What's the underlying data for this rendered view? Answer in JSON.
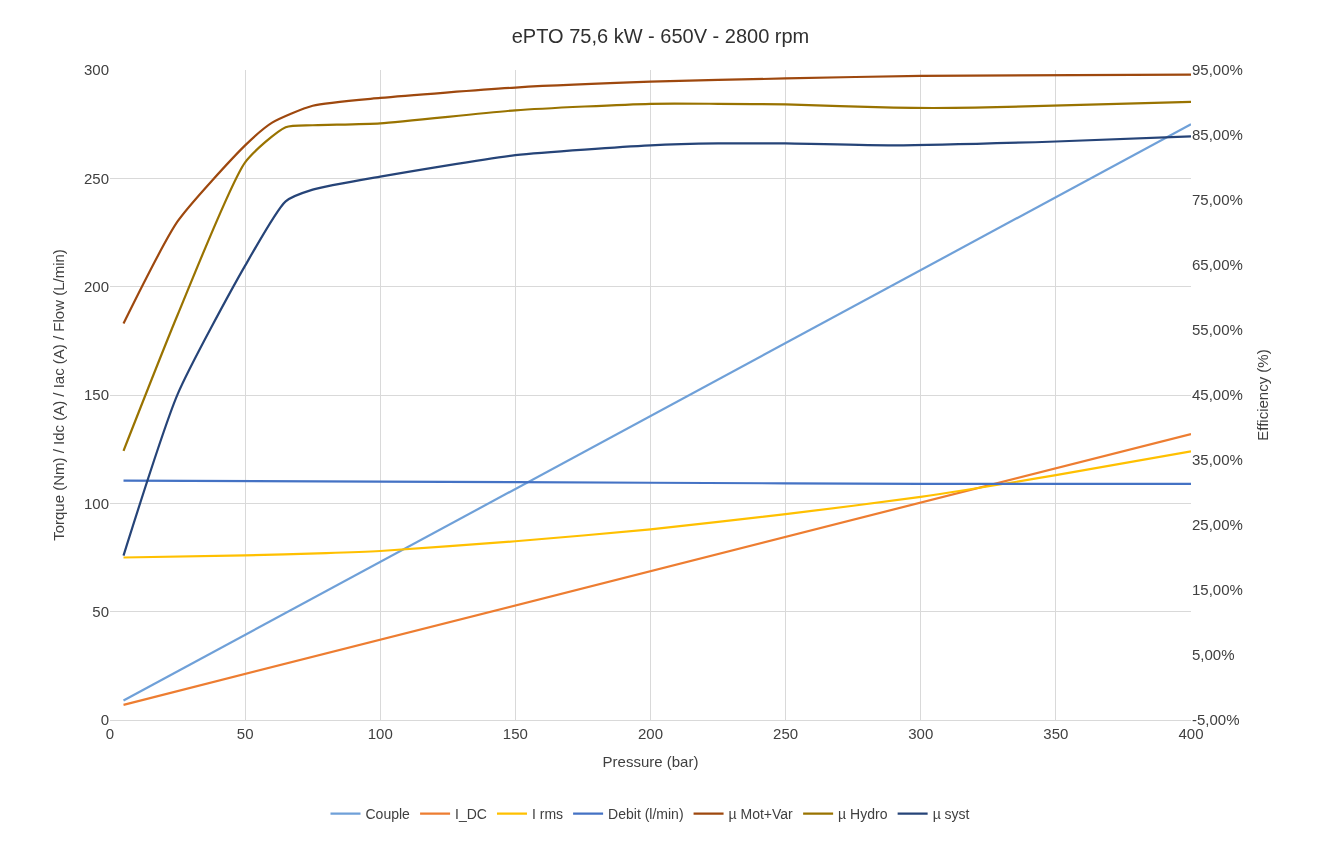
{
  "chart_data": {
    "type": "line",
    "title": "ePTO 75,6 kW - 650V - 2800 rpm",
    "xlabel": "Pressure (bar)",
    "ylabel": "Torque (Nm) / Idc (A) / Iac (A) / Flow (L/min)",
    "y2label": "Efficiency (%)",
    "xlim": [
      0,
      400
    ],
    "xticks": [
      0,
      50,
      100,
      150,
      200,
      250,
      300,
      350,
      {
        "value": 400,
        "label": "400"
      }
    ],
    "ylim": [
      0,
      300
    ],
    "yticks": [
      0,
      50,
      100,
      150,
      200,
      250,
      300
    ],
    "y2lim": [
      -5,
      95
    ],
    "y2ticks": [
      {
        "value": -5,
        "label": "-5,00%"
      },
      {
        "value": 5,
        "label": "5,00%"
      },
      {
        "value": 15,
        "label": "15,00%"
      },
      {
        "value": 25,
        "label": "25,00%"
      },
      {
        "value": 35,
        "label": "35,00%"
      },
      {
        "value": 45,
        "label": "45,00%"
      },
      {
        "value": 55,
        "label": "55,00%"
      },
      {
        "value": 65,
        "label": "65,00%"
      },
      {
        "value": 75,
        "label": "75,00%"
      },
      {
        "value": 85,
        "label": "85,00%"
      },
      {
        "value": 95,
        "label": "95,00%"
      }
    ],
    "grid": true,
    "legend": "bottom",
    "marker": "none",
    "line_style": "solid",
    "series": [
      {
        "name": "Couple",
        "color": "#6fa0d8",
        "x": [
          5,
          400
        ],
        "values": [
          9,
          275
        ]
      },
      {
        "name": "I_DC",
        "color": "#ed7d31",
        "x": [
          5,
          400
        ],
        "values": [
          7,
          132
        ]
      },
      {
        "name": "I rms",
        "color": "#ffc000",
        "x": [
          5,
          50,
          80,
          100,
          150,
          200,
          250,
          300,
          350,
          400
        ],
        "values": [
          75,
          76,
          77,
          78,
          82.5,
          88,
          95,
          103,
          113,
          124
        ]
      },
      {
        "name": "Debit (l/min)",
        "color": "#4472c4",
        "x": [
          5,
          100,
          200,
          300,
          400
        ],
        "values": [
          110.5,
          110,
          109.5,
          109,
          109
        ]
      },
      {
        "name": "µ Mot+Var",
        "color": "#9e480e",
        "axis": "y2",
        "x": [
          5,
          25,
          50,
          60,
          75,
          100,
          150,
          200,
          250,
          300,
          400
        ],
        "values": [
          56.0,
          71.7,
          83.4,
          86.9,
          89.5,
          90.7,
          92.3,
          93.2,
          93.7,
          94.1,
          94.3
        ]
      },
      {
        "name": "µ Hydro",
        "color": "#997300",
        "axis": "y2",
        "x": [
          5,
          25,
          50,
          65,
          75,
          100,
          150,
          200,
          225,
          250,
          290,
          320,
          400
        ],
        "values": [
          36.4,
          57.3,
          80.8,
          86.2,
          86.5,
          86.8,
          88.8,
          89.8,
          89.8,
          89.7,
          89.2,
          89.2,
          90.1
        ]
      },
      {
        "name": "µ syst",
        "color": "#264478",
        "axis": "y2",
        "x": [
          5,
          25,
          50,
          65,
          75,
          100,
          150,
          200,
          225,
          250,
          290,
          350,
          400
        ],
        "values": [
          20.3,
          45.1,
          64.9,
          74.8,
          76.6,
          78.6,
          81.9,
          83.4,
          83.7,
          83.7,
          83.4,
          84.0,
          84.8
        ]
      }
    ]
  }
}
